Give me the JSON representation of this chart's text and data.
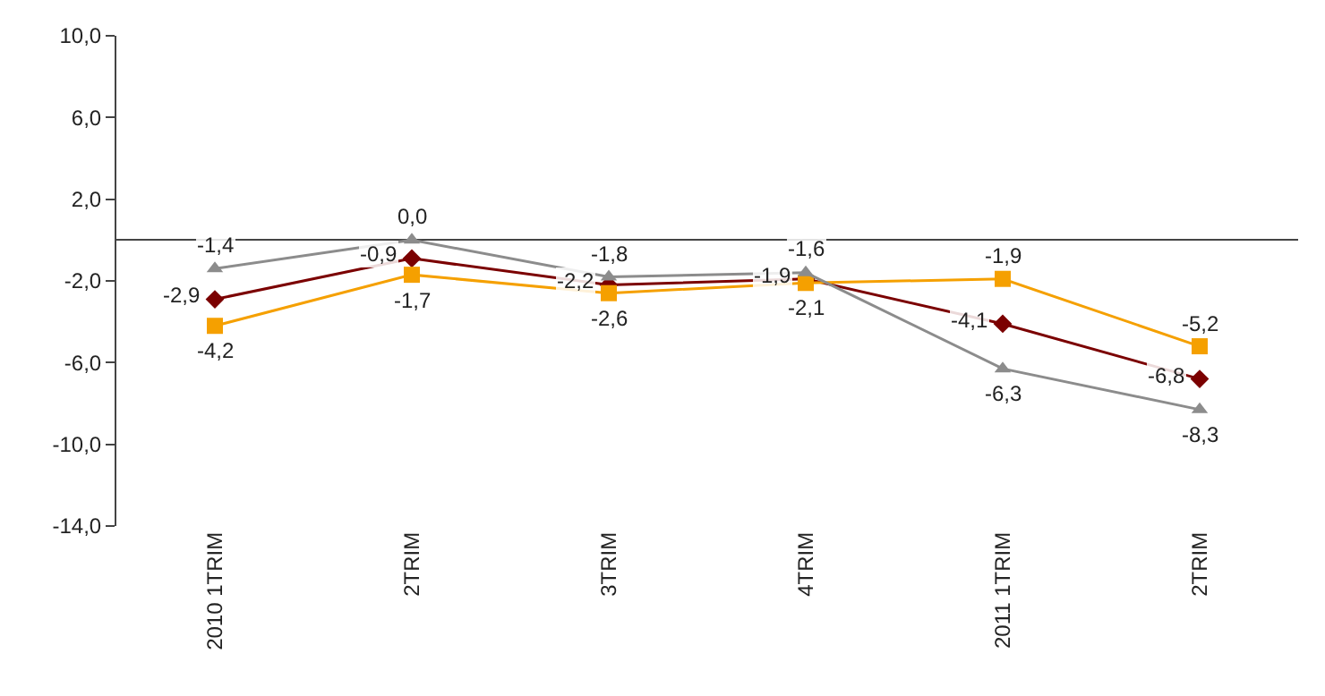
{
  "chart_data": {
    "type": "line",
    "categories": [
      "2010 1TRIM",
      "2TRIM",
      "3TRIM",
      "4TRIM",
      "2011 1TRIM",
      "2TRIM"
    ],
    "series": [
      {
        "color": "#7b0000",
        "marker": "diamond",
        "values": [
          -2.9,
          -0.9,
          -2.2,
          -1.9,
          -4.1,
          -6.8
        ],
        "value_labels": [
          "-2,9",
          "-0,9",
          "-2,2",
          "-1,9",
          "-4,1",
          "-6,8"
        ]
      },
      {
        "color": "#f5a000",
        "marker": "square",
        "values": [
          -4.2,
          -1.7,
          -2.6,
          -2.1,
          -1.9,
          -5.2
        ],
        "value_labels": [
          "-4,2",
          "-1,7",
          "-2,6",
          "-2,1",
          "-1,9",
          "-5,2"
        ]
      },
      {
        "color": "#8c8c8c",
        "marker": "triangle",
        "values": [
          -1.4,
          0.0,
          -1.8,
          -1.6,
          -6.3,
          -8.3
        ],
        "value_labels": [
          "-1,4",
          "0,0",
          "-1,8",
          "-1,6",
          "-6,3",
          "-8,3"
        ]
      }
    ],
    "ylim": [
      -14,
      10
    ],
    "yticks": [
      {
        "value": 10,
        "label": "10,0"
      },
      {
        "value": 6,
        "label": "6,0"
      },
      {
        "value": 2,
        "label": "2,0"
      },
      {
        "value": -2,
        "label": "-2,0"
      },
      {
        "value": -6,
        "label": "-6,0"
      },
      {
        "value": -10,
        "label": "-10,0"
      },
      {
        "value": -14,
        "label": "-14,0"
      }
    ],
    "legend": false
  }
}
